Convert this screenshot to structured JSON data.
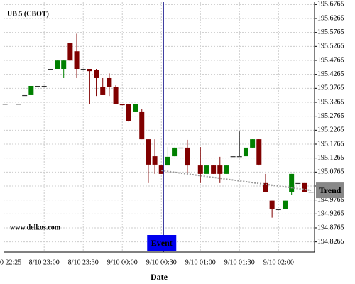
{
  "chart_data": {
    "type": "candlestick",
    "title": "UB 5 (CBOT)",
    "watermark": "www.delkos.com",
    "x_label": "Date",
    "categories": [
      "0 22:25",
      null,
      null,
      null,
      null,
      null,
      null,
      "8/10 23:00",
      null,
      null,
      null,
      null,
      null,
      "8/10 23:30",
      null,
      null,
      null,
      null,
      null,
      "9/10 00:00",
      null,
      null,
      null,
      null,
      null,
      "9/10 00:30",
      null,
      null,
      null,
      null,
      null,
      "9/10 01:00",
      null,
      null,
      null,
      null,
      null,
      "9/10 01:30",
      null,
      null,
      null,
      null,
      null,
      "9/10 02:00",
      null,
      null,
      null,
      null,
      null
    ],
    "open": [
      null,
      195.321,
      null,
      195.321,
      195.352,
      195.352,
      195.385,
      195.385,
      195.446,
      195.446,
      195.446,
      195.539,
      195.509,
      195.446,
      195.446,
      195.443,
      195.382,
      195.413,
      195.382,
      195.321,
      195.321,
      195.291,
      195.291,
      195.194,
      195.133,
      195.1,
      195.1,
      195.133,
      195.164,
      195.164,
      null,
      195.1,
      195.07,
      195.1,
      195.1,
      195.07,
      195.133,
      195.133,
      195.133,
      195.164,
      195.194,
      195.037,
      194.974,
      194.943,
      194.943,
      195.006,
      195.037,
      195.037,
      195.006
    ],
    "high": [
      null,
      195.321,
      null,
      195.321,
      195.352,
      195.385,
      195.385,
      195.385,
      195.446,
      195.476,
      195.476,
      195.539,
      195.572,
      195.446,
      195.446,
      195.446,
      195.413,
      195.43,
      195.387,
      195.321,
      195.321,
      195.321,
      195.301,
      195.194,
      195.194,
      195.1,
      195.166,
      195.164,
      195.164,
      195.192,
      null,
      195.166,
      195.1,
      195.1,
      195.131,
      195.1,
      195.133,
      195.222,
      195.164,
      195.194,
      195.194,
      195.07,
      194.974,
      194.943,
      194.974,
      195.07,
      195.037,
      195.037,
      195.006
    ],
    "low": [
      null,
      195.321,
      null,
      195.321,
      195.352,
      195.352,
      195.385,
      195.385,
      195.446,
      195.446,
      195.413,
      195.476,
      195.413,
      195.446,
      195.321,
      195.349,
      195.352,
      195.349,
      195.321,
      195.316,
      195.255,
      195.291,
      195.194,
      195.037,
      195.07,
      195.07,
      195.1,
      195.133,
      195.164,
      195.07,
      null,
      195.037,
      195.07,
      195.07,
      195.037,
      195.07,
      195.133,
      195.133,
      195.133,
      195.164,
      195.1,
      195.006,
      194.913,
      194.943,
      194.943,
      194.994,
      195.037,
      195.006,
      195.006
    ],
    "close": [
      null,
      195.321,
      null,
      195.321,
      195.352,
      195.385,
      195.385,
      195.385,
      195.446,
      195.476,
      195.476,
      195.476,
      195.446,
      195.446,
      195.438,
      195.413,
      195.352,
      195.382,
      195.321,
      195.316,
      195.26,
      195.321,
      195.194,
      195.103,
      195.103,
      195.07,
      195.131,
      195.164,
      195.164,
      195.1,
      null,
      195.07,
      195.1,
      195.07,
      195.07,
      195.1,
      195.133,
      195.133,
      195.164,
      195.194,
      195.103,
      195.006,
      194.943,
      194.943,
      194.974,
      195.07,
      195.037,
      195.006,
      195.006
    ],
    "colors": {
      "up": "#008000",
      "down": "#800000",
      "flat": "#333333"
    },
    "trend": {
      "name": "Trend",
      "color": "#999999",
      "values": [
        null,
        null,
        null,
        null,
        null,
        null,
        null,
        null,
        null,
        null,
        null,
        null,
        null,
        null,
        null,
        null,
        null,
        null,
        null,
        null,
        null,
        null,
        null,
        null,
        null,
        195.082,
        null,
        null,
        null,
        null,
        null,
        null,
        null,
        null,
        null,
        null,
        null,
        null,
        null,
        null,
        null,
        null,
        null,
        null,
        null,
        null,
        null,
        null,
        195.011
      ]
    },
    "event": {
      "label": "Event",
      "at": "9/10 00:30",
      "color": "#0000ee"
    },
    "ylim": [
      194.79,
      195.685
    ],
    "yticks": [
      195.6765,
      195.6265,
      195.5765,
      195.5265,
      195.4765,
      195.4265,
      195.3765,
      195.3265,
      195.2765,
      195.2265,
      195.1765,
      195.1265,
      195.0765,
      195.0265,
      194.9765,
      194.9265,
      194.8765,
      194.8265
    ],
    "grid": true
  }
}
